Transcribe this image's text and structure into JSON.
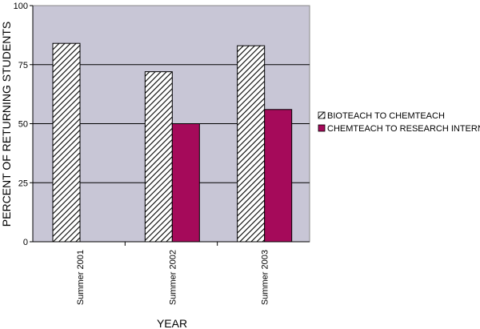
{
  "chart_data": {
    "type": "bar",
    "categories": [
      "Summer 2001",
      "Summer 2002",
      "Summer 2003"
    ],
    "series": [
      {
        "name": "BIOTEACH TO CHEMTEACH",
        "values": [
          84,
          72,
          83
        ],
        "fill": "hatch"
      },
      {
        "name": "CHEMTEACH TO RESEARCH INTERN",
        "values": [
          null,
          50,
          56
        ],
        "color": "#a50a5a"
      }
    ],
    "ylim": [
      0,
      100
    ],
    "yticks": [
      0,
      25,
      50,
      75,
      100
    ],
    "xlabel": "YEAR",
    "ylabel": "PERCENT OF RETURNING STUDENTS",
    "grid": true,
    "legend_position": "right",
    "plot_background": "#c8c6d6"
  }
}
